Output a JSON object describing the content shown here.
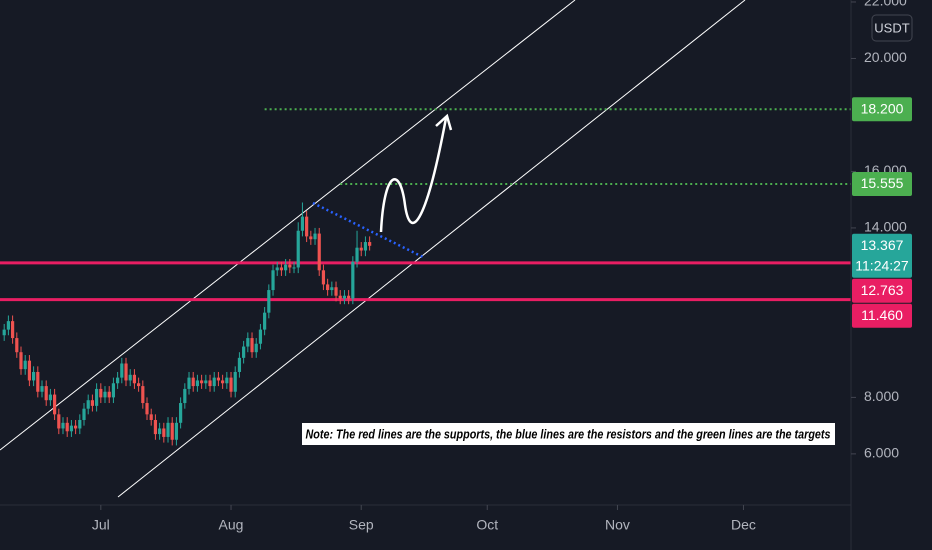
{
  "chart_data": {
    "type": "candlestick",
    "currency": "USDT",
    "note": "Note: The red lines are the supports, the blue lines are the resistors and the green lines are the targets",
    "up_color": "#26a69a",
    "down_color": "#ef5350",
    "open": [
      10.2,
      10.4,
      10.7,
      10.1,
      9.6,
      9.0,
      9.3,
      8.6,
      8.9,
      8.2,
      8.4,
      7.9,
      8.1,
      7.4,
      6.9,
      7.1,
      6.8,
      7.0,
      6.9,
      7.2,
      7.6,
      7.9,
      7.7,
      8.3,
      8.0,
      8.2,
      8.0,
      8.5,
      8.7,
      9.2,
      8.6,
      8.8,
      8.5,
      8.4,
      7.8,
      7.4,
      7.2,
      6.7,
      6.9,
      6.6,
      7.1,
      6.5,
      7.1,
      7.8,
      8.3,
      8.7,
      8.4,
      8.6,
      8.5,
      8.6,
      8.4,
      8.7,
      8.6,
      8.5,
      8.7,
      8.2,
      8.9,
      9.4,
      9.8,
      10.1,
      9.6,
      9.9,
      10.4,
      11.0,
      11.8,
      12.5,
      12.6,
      12.5,
      12.7,
      12.6,
      12.6,
      13.9,
      14.4,
      13.7,
      13.6,
      13.8,
      12.5,
      12.0,
      11.8,
      11.9,
      11.6,
      11.5,
      11.6,
      11.5,
      12.8,
      13.3,
      13.2,
      13.5
    ],
    "high": [
      10.6,
      10.9,
      10.9,
      10.3,
      9.8,
      9.5,
      9.5,
      9.1,
      9.1,
      8.6,
      8.6,
      8.3,
      8.3,
      7.6,
      7.3,
      7.3,
      7.2,
      7.2,
      7.4,
      7.8,
      8.1,
      8.1,
      8.5,
      8.5,
      8.4,
      8.4,
      8.7,
      8.9,
      9.4,
      9.4,
      9.0,
      9.0,
      8.7,
      8.6,
      8.0,
      7.6,
      7.4,
      7.1,
      7.1,
      7.3,
      7.3,
      7.3,
      8.0,
      8.5,
      8.9,
      8.9,
      8.8,
      8.8,
      8.8,
      8.8,
      8.9,
      8.9,
      8.8,
      8.9,
      8.9,
      9.1,
      9.6,
      10.0,
      10.3,
      10.3,
      10.1,
      10.6,
      11.2,
      12.0,
      12.7,
      12.8,
      12.8,
      12.9,
      12.9,
      12.8,
      14.2,
      14.9,
      14.6,
      13.9,
      14.0,
      14.0,
      12.7,
      12.2,
      12.1,
      12.1,
      11.8,
      11.8,
      11.8,
      13.0,
      13.9,
      13.5,
      13.7,
      13.7
    ],
    "low": [
      10.0,
      10.2,
      9.9,
      9.4,
      8.8,
      8.8,
      8.4,
      8.4,
      8.0,
      8.0,
      7.7,
      7.7,
      7.2,
      6.7,
      6.7,
      6.6,
      6.6,
      6.7,
      6.7,
      7.0,
      7.4,
      7.5,
      7.5,
      7.8,
      7.8,
      7.8,
      7.8,
      8.3,
      8.5,
      8.4,
      8.4,
      8.3,
      8.2,
      7.6,
      7.2,
      7.0,
      6.5,
      6.5,
      6.4,
      6.4,
      6.3,
      6.3,
      6.9,
      7.6,
      8.1,
      8.2,
      8.2,
      8.3,
      8.3,
      8.2,
      8.2,
      8.4,
      8.3,
      8.3,
      8.0,
      8.0,
      8.7,
      9.2,
      9.6,
      9.4,
      9.4,
      9.7,
      10.2,
      10.8,
      11.6,
      12.3,
      12.3,
      12.3,
      12.4,
      12.4,
      12.4,
      13.7,
      13.5,
      13.4,
      13.4,
      12.3,
      11.8,
      11.6,
      11.6,
      11.4,
      11.3,
      11.3,
      11.3,
      11.3,
      12.6,
      13.0,
      13.0,
      13.2
    ],
    "close": [
      10.4,
      10.7,
      10.1,
      9.6,
      9.0,
      9.3,
      8.6,
      8.9,
      8.2,
      8.4,
      7.9,
      8.1,
      7.4,
      6.9,
      7.1,
      6.8,
      7.0,
      6.9,
      7.2,
      7.6,
      7.9,
      7.7,
      8.3,
      8.0,
      8.2,
      8.0,
      8.5,
      8.7,
      9.2,
      8.6,
      8.8,
      8.5,
      8.4,
      7.8,
      7.4,
      7.2,
      6.7,
      6.9,
      6.6,
      7.1,
      6.5,
      7.1,
      7.8,
      8.3,
      8.7,
      8.4,
      8.6,
      8.5,
      8.6,
      8.4,
      8.7,
      8.6,
      8.5,
      8.7,
      8.2,
      8.9,
      9.4,
      9.8,
      10.1,
      9.6,
      9.9,
      10.4,
      11.0,
      11.8,
      12.5,
      12.6,
      12.5,
      12.7,
      12.6,
      12.6,
      13.9,
      14.4,
      13.7,
      13.6,
      13.8,
      12.5,
      12.0,
      11.8,
      11.9,
      11.6,
      11.5,
      11.6,
      11.5,
      12.8,
      13.3,
      13.2,
      13.5,
      13.367
    ],
    "current": {
      "value": 13.367,
      "label": "13.367",
      "countdown": "11:24:27",
      "color": "#26a69a"
    },
    "levels": [
      {
        "value": 18.2,
        "label": "18.200",
        "color": "#4caf50",
        "style": "dotted",
        "start": 62
      },
      {
        "value": 15.555,
        "label": "15.555",
        "color": "#4caf50",
        "style": "dotted",
        "start": 80
      },
      {
        "value": 12.763,
        "label": "12.763",
        "color": "#e91e63",
        "style": "solid",
        "start": -1
      },
      {
        "value": 11.46,
        "label": "11.460",
        "color": "#e91e63",
        "style": "solid",
        "start": -1
      }
    ],
    "xlim": [
      -1,
      201.6
    ],
    "xticks": [
      {
        "value": 23,
        "label": "Jul"
      },
      {
        "value": 54,
        "label": "Aug"
      },
      {
        "value": 85,
        "label": "Sep"
      },
      {
        "value": 115,
        "label": "Oct"
      },
      {
        "value": 146,
        "label": "Nov"
      },
      {
        "value": 176,
        "label": "Dec"
      }
    ],
    "ylim": [
      4.19,
      22.07
    ],
    "yticks": [
      {
        "value": 22,
        "label": "22.000"
      },
      {
        "value": 20,
        "label": "20.000"
      },
      {
        "value": 16,
        "label": "16.000"
      },
      {
        "value": 14,
        "label": "14.000"
      },
      {
        "value": 8,
        "label": "8.000"
      },
      {
        "value": 6,
        "label": "6.000"
      }
    ]
  }
}
